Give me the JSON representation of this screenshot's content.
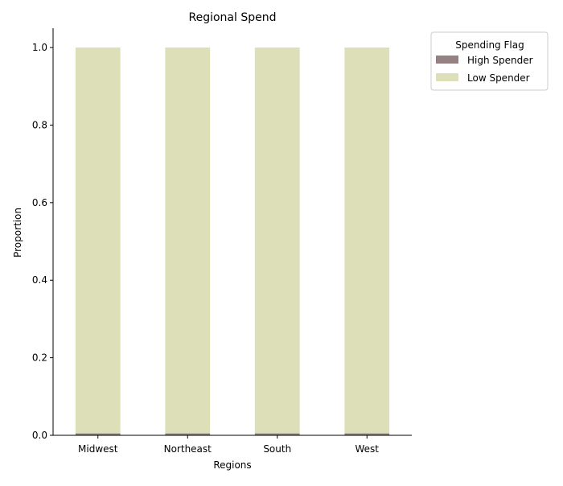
{
  "chart_data": {
    "type": "bar",
    "stacked": true,
    "title": "Regional Spend",
    "xlabel": "Regions",
    "ylabel": "Proportion",
    "categories": [
      "Midwest",
      "Northeast",
      "South",
      "West"
    ],
    "series": [
      {
        "name": "High Spender",
        "values": [
          0.005,
          0.005,
          0.005,
          0.005
        ],
        "color": "#958181"
      },
      {
        "name": "Low Spender",
        "values": [
          0.995,
          0.995,
          0.995,
          0.995
        ],
        "color": "#dcdfb8"
      }
    ],
    "ylim": [
      0,
      1.05
    ],
    "yticks": [
      0.0,
      0.2,
      0.4,
      0.6,
      0.8,
      1.0
    ],
    "ytick_labels": [
      "0.0",
      "0.2",
      "0.4",
      "0.6",
      "0.8",
      "1.0"
    ],
    "grid": false,
    "legend": {
      "title": "Spending Flag",
      "placement": "outside-top-right"
    }
  }
}
